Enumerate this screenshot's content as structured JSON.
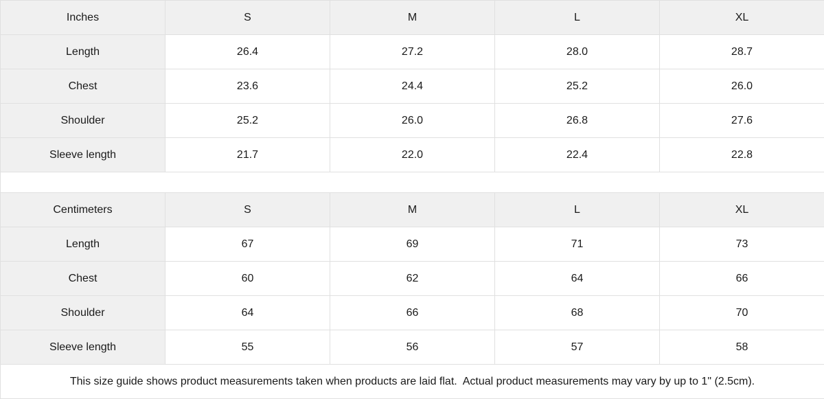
{
  "colors": {
    "header_bg": "#f0f0f0",
    "label_column_bg": "#f0f0f0",
    "cell_bg": "#ffffff",
    "grid_border": "#e0e0e0",
    "text": "#1a1a1a"
  },
  "tables": [
    {
      "unit_label": "Inches",
      "size_headers": [
        "S",
        "M",
        "L",
        "XL"
      ],
      "rows": [
        {
          "label": "Length",
          "values": [
            "26.4",
            "27.2",
            "28.0",
            "28.7"
          ]
        },
        {
          "label": "Chest",
          "values": [
            "23.6",
            "24.4",
            "25.2",
            "26.0"
          ]
        },
        {
          "label": "Shoulder",
          "values": [
            "25.2",
            "26.0",
            "26.8",
            "27.6"
          ]
        },
        {
          "label": "Sleeve length",
          "values": [
            "21.7",
            "22.0",
            "22.4",
            "22.8"
          ]
        }
      ]
    },
    {
      "unit_label": "Centimeters",
      "size_headers": [
        "S",
        "M",
        "L",
        "XL"
      ],
      "rows": [
        {
          "label": "Length",
          "values": [
            "67",
            "69",
            "71",
            "73"
          ]
        },
        {
          "label": "Chest",
          "values": [
            "60",
            "62",
            "64",
            "66"
          ]
        },
        {
          "label": "Shoulder",
          "values": [
            "64",
            "66",
            "68",
            "70"
          ]
        },
        {
          "label": "Sleeve length",
          "values": [
            "55",
            "56",
            "57",
            "58"
          ]
        }
      ]
    }
  ],
  "footer_note": "This size guide shows product measurements taken when products are laid flat.  Actual product measurements may vary by up to 1\" (2.5cm)."
}
